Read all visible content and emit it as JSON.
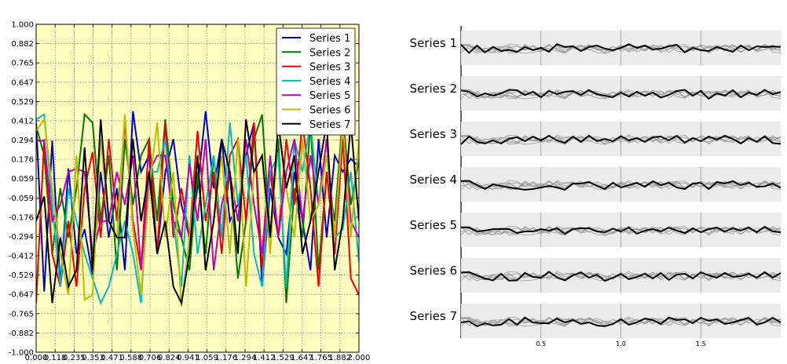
{
  "colors": {
    "left_bg": "#FFFFC0",
    "series": [
      "#0000cc",
      "#007700",
      "#ee0000",
      "#00bbbb",
      "#bb00bb",
      "#bbbb00",
      "#000000"
    ],
    "small_band": "#ececec",
    "small_gray": "#999999",
    "small_highlight": "#000000"
  },
  "chart_data": [
    {
      "type": "line",
      "grid": true,
      "legend_position": "top-right",
      "xlim": [
        0,
        2
      ],
      "ylim": [
        -1,
        1
      ],
      "xticks": [
        "0.000",
        "0.118",
        "0.235",
        "0.353",
        "0.471",
        "0.588",
        "0.706",
        "0.824",
        "0.941",
        "1.059",
        "1.176",
        "1.294",
        "1.412",
        "1.529",
        "1.647",
        "1.765",
        "1.882",
        "2.000"
      ],
      "yticks": [
        "1.000",
        "0.882",
        "0.765",
        "0.647",
        "0.529",
        "0.412",
        "0.294",
        "0.176",
        "0.059",
        "-0.059",
        "-0.176",
        "-0.294",
        "-0.412",
        "-0.529",
        "-0.647",
        "-0.765",
        "-0.882",
        "-1.000"
      ],
      "x": [
        0.0,
        0.05,
        0.1,
        0.15,
        0.2,
        0.25,
        0.3,
        0.35,
        0.4,
        0.45,
        0.5,
        0.55,
        0.6,
        0.65,
        0.7,
        0.75,
        0.8,
        0.85,
        0.9,
        0.95,
        1.0,
        1.05,
        1.1,
        1.15,
        1.2,
        1.25,
        1.3,
        1.35,
        1.4,
        1.45,
        1.5,
        1.55,
        1.6,
        1.65,
        1.7,
        1.75,
        1.8,
        1.85,
        1.9,
        1.95,
        2.0
      ],
      "series": [
        {
          "name": "Series 1",
          "values": [
            0.4,
            -0.63,
            0.29,
            -0.6,
            0.12,
            -0.4,
            -0.25,
            -0.53,
            0.1,
            -0.3,
            0.0,
            -0.5,
            0.47,
            0.1,
            0.2,
            -0.4,
            0.1,
            0.3,
            -0.1,
            -0.3,
            0.0,
            0.47,
            0.0,
            0.3,
            -0.2,
            -0.1,
            0.2,
            0.4,
            -0.6,
            0.0,
            -0.3,
            -0.4,
            0.1,
            -0.2,
            -0.5,
            0.3,
            -0.3,
            0.2,
            0.1,
            0.18,
            0.13
          ]
        },
        {
          "name": "Series 2",
          "values": [
            0.38,
            0.2,
            -0.4,
            0.0,
            -0.3,
            0.0,
            0.45,
            0.4,
            -0.2,
            0.2,
            -0.5,
            0.3,
            -0.1,
            0.2,
            0.3,
            -0.2,
            0.42,
            -0.1,
            -0.3,
            -0.5,
            0.1,
            -0.4,
            0.2,
            -0.3,
            0.1,
            -0.55,
            -0.2,
            0.3,
            0.45,
            -0.3,
            0.3,
            -0.7,
            0.0,
            -0.3,
            0.4,
            -0.5,
            0.1,
            -0.2,
            0.45,
            -0.1,
            0.17
          ]
        },
        {
          "name": "Series 3",
          "values": [
            -0.7,
            0.3,
            -0.4,
            -0.6,
            -0.2,
            -0.6,
            0.0,
            0.22,
            -0.3,
            0.3,
            -0.2,
            0.4,
            -0.2,
            -0.5,
            0.3,
            -0.4,
            0.4,
            -0.3,
            0.0,
            -0.3,
            0.35,
            -0.2,
            0.1,
            -0.4,
            0.2,
            0.3,
            -0.2,
            0.4,
            -0.5,
            0.1,
            -0.3,
            0.3,
            -0.1,
            0.4,
            0.0,
            -0.6,
            0.1,
            -0.4,
            0.3,
            -0.55,
            -0.65
          ]
        },
        {
          "name": "Series 4",
          "values": [
            0.42,
            0.45,
            -0.1,
            -0.6,
            0.0,
            -0.2,
            -0.4,
            -0.55,
            -0.7,
            -0.6,
            -0.4,
            -0.2,
            -0.4,
            -0.7,
            0.1,
            0.1,
            0.3,
            -0.2,
            -0.6,
            0.2,
            -0.4,
            -0.1,
            0.2,
            -0.3,
            0.4,
            -0.1,
            0.2,
            -0.4,
            -0.6,
            0.1,
            0.2,
            -0.6,
            0.3,
            0.1,
            0.4,
            -0.1,
            0.2,
            -0.3,
            -0.25,
            0.1,
            -0.45
          ]
        },
        {
          "name": "Series 5",
          "values": [
            0.29,
            0.29,
            -0.2,
            -0.1,
            0.1,
            0.12,
            0.1,
            -0.4,
            -0.2,
            -0.2,
            0.1,
            -0.1,
            0.2,
            -0.5,
            0.1,
            0.2,
            0.2,
            -0.2,
            -0.3,
            0.15,
            -0.2,
            0.3,
            -0.5,
            -0.1,
            0.1,
            -0.2,
            0.3,
            -0.1,
            -0.4,
            0.2,
            -0.3,
            0.1,
            0.3,
            -0.2,
            0.2,
            -0.1,
            0.3,
            -0.3,
            0.4,
            -0.2,
            -0.3
          ]
        },
        {
          "name": "Series 6",
          "values": [
            0.35,
            0.42,
            0.0,
            -0.4,
            -0.65,
            0.2,
            -0.68,
            -0.65,
            0.3,
            -0.2,
            -0.3,
            0.45,
            -0.25,
            -0.65,
            0.0,
            0.4,
            -0.3,
            0.1,
            -0.72,
            -0.3,
            0.18,
            -0.5,
            -0.2,
            0.2,
            -0.4,
            0.3,
            -0.6,
            0.1,
            0.2,
            -0.4,
            0.4,
            0.0,
            -0.3,
            0.3,
            -0.2,
            -0.1,
            0.2,
            -0.3,
            0.4,
            -0.3,
            0.3
          ]
        },
        {
          "name": "Series 7",
          "values": [
            -0.2,
            -0.05,
            -0.7,
            -0.3,
            -0.6,
            -0.5,
            0.25,
            -0.5,
            0.42,
            -0.2,
            -0.3,
            -0.3,
            0.3,
            -0.2,
            0.1,
            -0.4,
            -0.2,
            -0.6,
            -0.7,
            -0.4,
            0.2,
            -0.5,
            -0.2,
            0.3,
            0.1,
            -0.4,
            0.42,
            0.1,
            0.2,
            -0.3,
            0.4,
            0.0,
            0.2,
            -0.4,
            -0.2,
            0.1,
            0.4,
            -0.5,
            -0.2,
            0.4,
            -0.2
          ]
        }
      ]
    },
    {
      "type": "line",
      "layout": "small-multiples",
      "xlim": [
        0,
        2
      ],
      "xticks": [
        "0.5",
        "1.0",
        "1.5"
      ],
      "x": [
        0.0,
        0.05,
        0.1,
        0.15,
        0.2,
        0.25,
        0.3,
        0.35,
        0.4,
        0.45,
        0.5,
        0.55,
        0.6,
        0.65,
        0.7,
        0.75,
        0.8,
        0.85,
        0.9,
        0.95,
        1.0,
        1.05,
        1.1,
        1.15,
        1.2,
        1.25,
        1.3,
        1.35,
        1.4,
        1.45,
        1.5,
        1.55,
        1.6,
        1.65,
        1.7,
        1.75,
        1.8,
        1.85,
        1.9,
        1.95,
        2.0
      ],
      "panels": [
        "Series 1",
        "Series 2",
        "Series 3",
        "Series 4",
        "Series 5",
        "Series 6",
        "Series 7"
      ]
    }
  ]
}
